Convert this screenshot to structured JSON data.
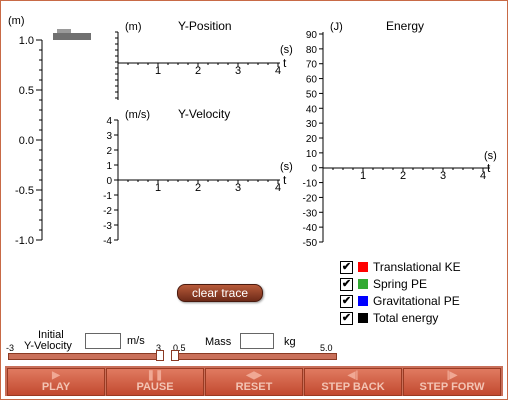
{
  "vertical_scale": {
    "unit": "(m)",
    "ticks": [
      "1.0",
      "0.5",
      "0.0",
      "-0.5",
      "-1.0"
    ]
  },
  "position_chart": {
    "unit": "(m)",
    "title": "Y-Position",
    "t_unit": "(s)",
    "t_label": "t",
    "t_ticks": [
      "1",
      "2",
      "3",
      "4"
    ]
  },
  "velocity_chart": {
    "unit": "(m/s)",
    "title": "Y-Velocity",
    "t_unit": "(s)",
    "t_label": "t",
    "t_ticks": [
      "1",
      "2",
      "3",
      "4"
    ],
    "y_ticks": [
      "4",
      "3",
      "2",
      "1",
      "0",
      "-1",
      "-2",
      "-3",
      "-4"
    ]
  },
  "energy_chart": {
    "unit": "(J)",
    "title": "Energy",
    "t_unit": "(s)",
    "t_label": "t",
    "t_ticks": [
      "1",
      "2",
      "3",
      "4"
    ],
    "y_ticks": [
      "90",
      "80",
      "70",
      "60",
      "50",
      "40",
      "30",
      "20",
      "10",
      "0",
      "-10",
      "-20",
      "-30",
      "-40",
      "-50"
    ]
  },
  "legend": [
    {
      "label": "Translational KE",
      "color": "#ff0000",
      "checked": "✔"
    },
    {
      "label": "Spring PE",
      "color": "#33aa33",
      "checked": "✔"
    },
    {
      "label": "Gravitational PE",
      "color": "#0000ff",
      "checked": "✔"
    },
    {
      "label": "Total energy",
      "color": "#000000",
      "checked": "✔"
    }
  ],
  "clear_trace_label": "clear trace",
  "velocity_input": {
    "label_line1": "Initial",
    "label_line2": "Y-Velocity",
    "unit": "m/s",
    "value": "",
    "slider_min": "-3",
    "slider_max": "3",
    "slider_level": 1.0
  },
  "mass_input": {
    "label": "Mass",
    "unit": "kg",
    "value": "",
    "slider_min": "0.5",
    "slider_max": "5.0",
    "slider_level": 0.0
  },
  "controls": [
    {
      "label": "PLAY",
      "glyph": "▶"
    },
    {
      "label": "PAUSE",
      "glyph": "❚❚"
    },
    {
      "label": "RESET",
      "glyph": "◀▶"
    },
    {
      "label": "STEP BACK",
      "glyph": "◀|"
    },
    {
      "label": "STEP FORW",
      "glyph": "|▶"
    }
  ],
  "colors": {
    "accent": "#c9705a",
    "frame": "#c86a46"
  }
}
